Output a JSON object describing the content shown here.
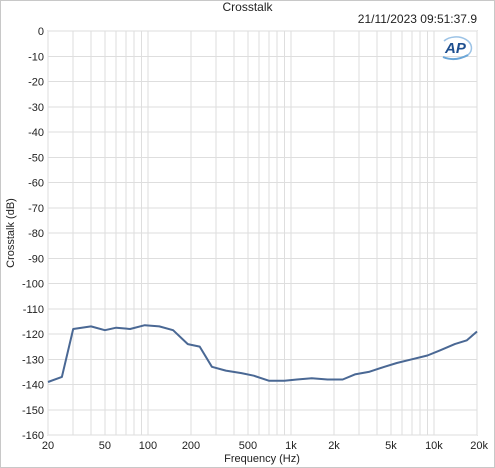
{
  "chart_data": {
    "type": "line",
    "title": "Crosstalk",
    "timestamp": "21/11/2023 09:51:37.9",
    "xlabel": "Frequency (Hz)",
    "ylabel": "Crosstalk (dB)",
    "x_scale": "log",
    "xlim": [
      20,
      20000
    ],
    "ylim": [
      -160,
      0
    ],
    "grid": true,
    "x_tick_labels": [
      {
        "value": 20,
        "label": "20"
      },
      {
        "value": 50,
        "label": "50"
      },
      {
        "value": 100,
        "label": "100"
      },
      {
        "value": 200,
        "label": "200"
      },
      {
        "value": 500,
        "label": "500"
      },
      {
        "value": 1000,
        "label": "1k"
      },
      {
        "value": 2000,
        "label": "2k"
      },
      {
        "value": 5000,
        "label": "5k"
      },
      {
        "value": 10000,
        "label": "10k"
      },
      {
        "value": 20000,
        "label": "20k"
      }
    ],
    "y_ticks": [
      0,
      -10,
      -20,
      -30,
      -40,
      -50,
      -60,
      -70,
      -80,
      -90,
      -100,
      -110,
      -120,
      -130,
      -140,
      -150,
      -160
    ],
    "series": [
      {
        "color": "#4a6894",
        "x": [
          20,
          25,
          30,
          40,
          50,
          60,
          75,
          95,
          120,
          150,
          190,
          230,
          280,
          350,
          450,
          550,
          700,
          900,
          1100,
          1400,
          1800,
          2300,
          2800,
          3500,
          4500,
          5500,
          7000,
          9000,
          11000,
          14000,
          17000,
          20000
        ],
        "y": [
          -139,
          -137,
          -118,
          -117,
          -118.5,
          -117.5,
          -118,
          -116.5,
          -117,
          -118.5,
          -124,
          -125,
          -133,
          -134.5,
          -135.5,
          -136.5,
          -138.5,
          -138.5,
          -138,
          -137.5,
          -138,
          -138,
          -136,
          -135,
          -133,
          -131.5,
          -130,
          -128.5,
          -126.5,
          -124,
          -122.5,
          -119
        ]
      }
    ]
  },
  "logo": {
    "text": "AP",
    "color": "#1e4f8f"
  }
}
